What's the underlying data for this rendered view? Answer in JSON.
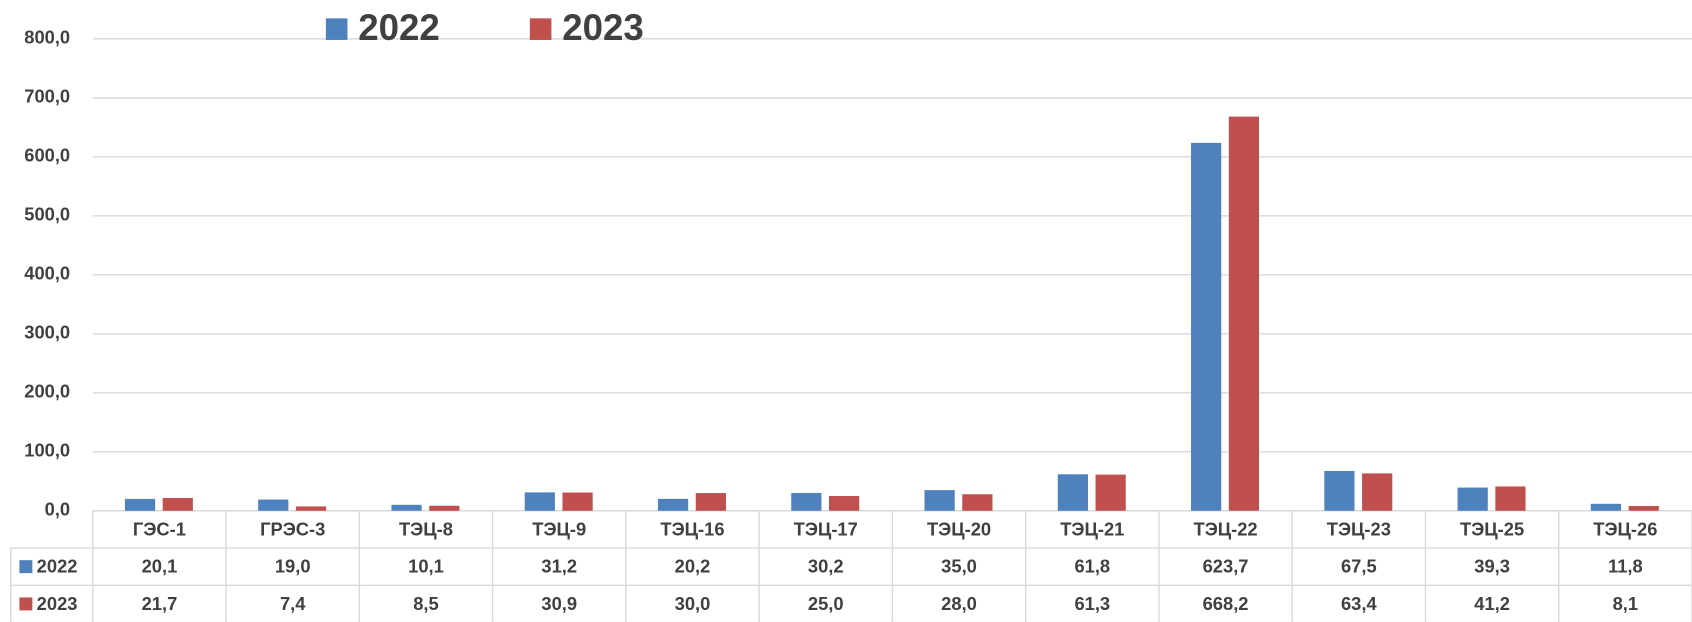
{
  "chart_data": {
    "type": "bar",
    "categories": [
      "ГЭС-1",
      "ГРЭС-3",
      "ТЭЦ-8",
      "ТЭЦ-9",
      "ТЭЦ-16",
      "ТЭЦ-17",
      "ТЭЦ-20",
      "ТЭЦ-21",
      "ТЭЦ-22",
      "ТЭЦ-23",
      "ТЭЦ-25",
      "ТЭЦ-26"
    ],
    "series": [
      {
        "name": "2022",
        "color": "#4f81bd",
        "values": [
          20.1,
          19.0,
          10.1,
          31.2,
          20.2,
          30.2,
          35.0,
          61.8,
          623.7,
          67.5,
          39.3,
          11.8
        ],
        "value_labels": [
          "20,1",
          "19,0",
          "10,1",
          "31,2",
          "20,2",
          "30,2",
          "35,0",
          "61,8",
          "623,7",
          "67,5",
          "39,3",
          "11,8"
        ]
      },
      {
        "name": "2023",
        "color": "#c0504d",
        "values": [
          21.7,
          7.4,
          8.5,
          30.9,
          30.0,
          25.0,
          28.0,
          61.3,
          668.2,
          63.4,
          41.2,
          8.1
        ],
        "value_labels": [
          "21,7",
          "7,4",
          "8,5",
          "30,9",
          "30,0",
          "25,0",
          "28,0",
          "61,3",
          "668,2",
          "63,4",
          "41,2",
          "8,1"
        ]
      }
    ],
    "ylim": [
      0,
      800
    ],
    "yticks": [
      {
        "value": 0,
        "label": "0,0"
      },
      {
        "value": 100,
        "label": "100,0"
      },
      {
        "value": 200,
        "label": "200,0"
      },
      {
        "value": 300,
        "label": "300,0"
      },
      {
        "value": 400,
        "label": "400,0"
      },
      {
        "value": 500,
        "label": "500,0"
      },
      {
        "value": 600,
        "label": "600,0"
      },
      {
        "value": 700,
        "label": "700,0"
      },
      {
        "value": 800,
        "label": "800,0"
      }
    ],
    "grid": true,
    "legend": "top"
  }
}
